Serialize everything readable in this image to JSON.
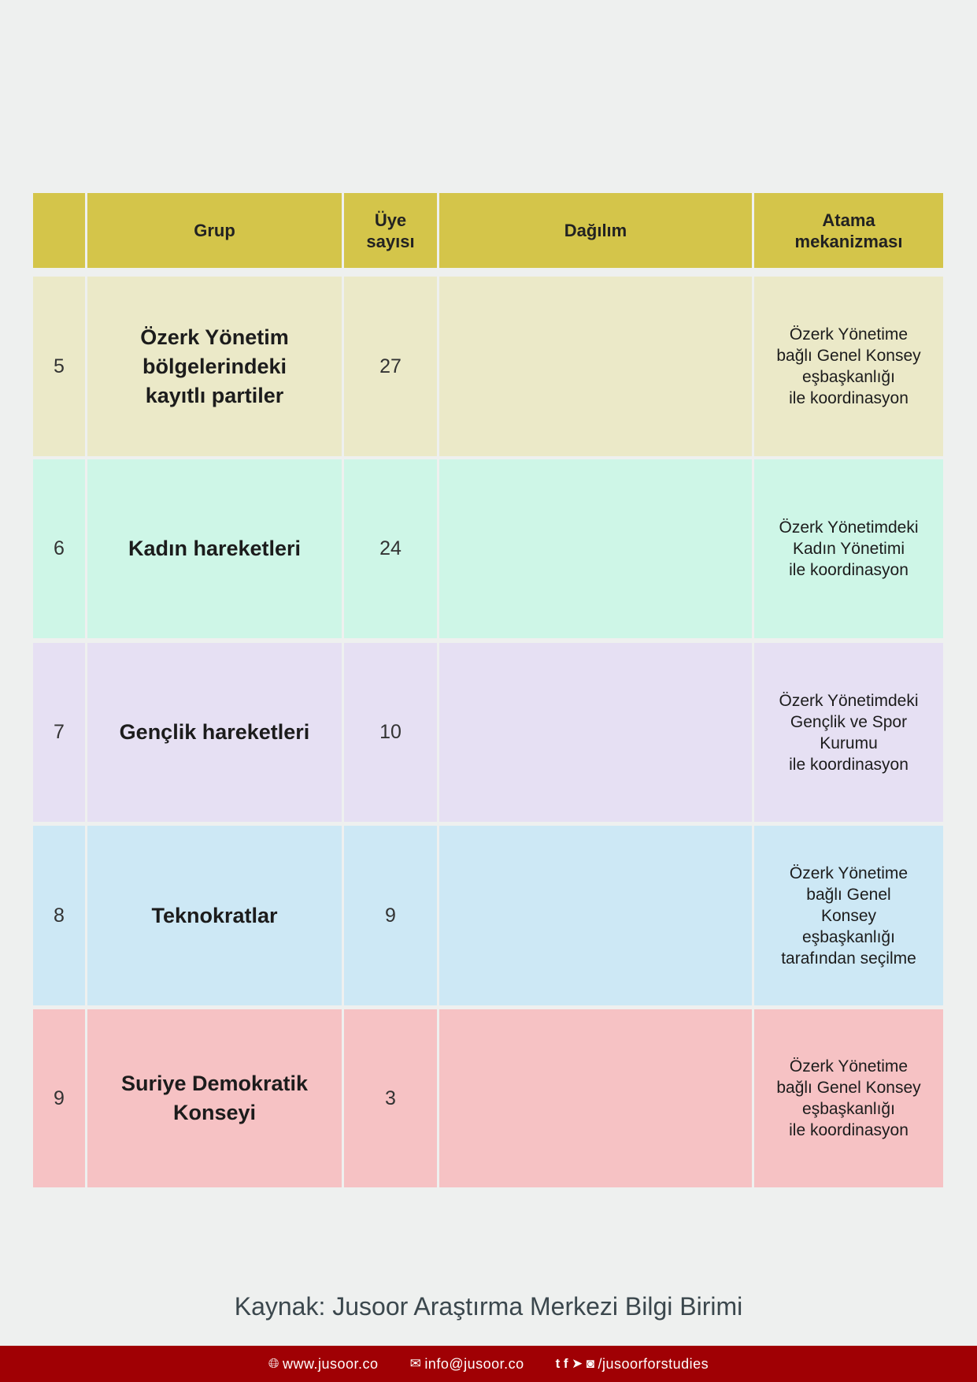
{
  "header": {
    "num": "",
    "group": [
      "Grup"
    ],
    "count": [
      "Üye",
      "sayısı"
    ],
    "distribution": [
      "Dağılım"
    ],
    "mechanism": [
      "Atama",
      "mekanizması"
    ],
    "color": "#d4c54a"
  },
  "rows": [
    {
      "num": "5",
      "group": [
        "Özerk Yönetim",
        "bölgelerindeki",
        "kayıtlı partiler"
      ],
      "count": "27",
      "distribution": "",
      "mechanism": [
        "Özerk Yönetime",
        "bağlı Genel Konsey",
        "eşbaşkanlığı",
        "ile koordinasyon"
      ],
      "color": "#ebe9c8"
    },
    {
      "num": "6",
      "group": [
        "Kadın hareketleri"
      ],
      "count": "24",
      "distribution": "",
      "mechanism": [
        "Özerk Yönetimdeki",
        "Kadın Yönetimi",
        "ile koordinasyon"
      ],
      "color": "#cef6e7"
    },
    {
      "num": "7",
      "group": [
        "Gençlik hareketleri"
      ],
      "count": "10",
      "distribution": "",
      "mechanism": [
        "Özerk Yönetimdeki",
        "Gençlik ve Spor",
        "Kurumu",
        "ile koordinasyon"
      ],
      "color": "#e6e0f3"
    },
    {
      "num": "8",
      "group": [
        "Teknokratlar"
      ],
      "count": "9",
      "distribution": "",
      "mechanism": [
        "Özerk Yönetime",
        "bağlı Genel",
        "Konsey",
        "eşbaşkanlığı",
        "tarafından seçilme"
      ],
      "color": "#cde8f5"
    },
    {
      "num": "9",
      "group": [
        "Suriye Demokratik",
        "Konseyi"
      ],
      "count": "3",
      "distribution": "",
      "mechanism": [
        "Özerk Yönetime",
        "bağlı Genel Konsey",
        "eşbaşkanlığı",
        "ile koordinasyon"
      ],
      "color": "#f6c2c4"
    }
  ],
  "source": "Kaynak: Jusoor Araştırma Merkezi Bilgi Birimi",
  "footer": {
    "website": "www.jusoor.co",
    "email": "info@jusoor.co",
    "social": "/jusoorforstudies",
    "icons": [
      "globe-icon",
      "envelope-icon",
      "twitter-icon",
      "facebook-icon",
      "telegram-icon",
      "instagram-icon"
    ],
    "color": "#a00004"
  }
}
